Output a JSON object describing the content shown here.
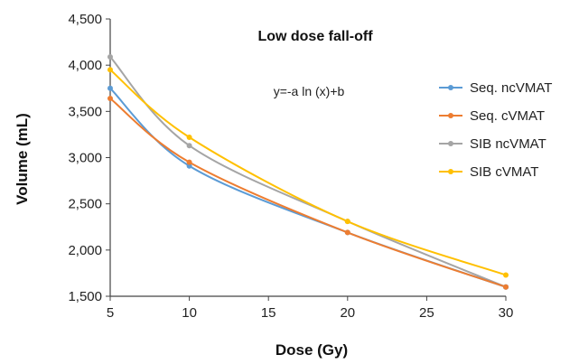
{
  "chart_data": {
    "type": "line",
    "title": "Low dose fall-off",
    "annotation": "y=-a ln (x)+b",
    "xlabel": "Dose (Gy)",
    "ylabel": "Volume (mL)",
    "xlim": [
      5,
      30
    ],
    "ylim": [
      1500,
      4500
    ],
    "xticks": [
      5,
      10,
      15,
      20,
      25,
      30
    ],
    "xtick_labels": [
      "5",
      "10",
      "15",
      "20",
      "25",
      "30"
    ],
    "yticks": [
      1500,
      2000,
      2500,
      3000,
      3500,
      4000,
      4500
    ],
    "ytick_labels": [
      "1,500",
      "2,000",
      "2,500",
      "3,000",
      "3,500",
      "4,000",
      "4,500"
    ],
    "grid": false,
    "legend_position": "right",
    "x": [
      5,
      10,
      20,
      30
    ],
    "series": [
      {
        "name": "Seq. ncVMAT",
        "color": "#5b9bd5",
        "values": [
          3750,
          2910,
          2190,
          1600
        ]
      },
      {
        "name": "Seq. cVMAT",
        "color": "#ed7d31",
        "values": [
          3640,
          2950,
          2190,
          1600
        ]
      },
      {
        "name": "SIB ncVMAT",
        "color": "#a5a5a5",
        "values": [
          4090,
          3130,
          2310,
          1600
        ]
      },
      {
        "name": "SIB cVMAT",
        "color": "#ffc000",
        "values": [
          3950,
          3220,
          2310,
          1730
        ]
      }
    ]
  }
}
